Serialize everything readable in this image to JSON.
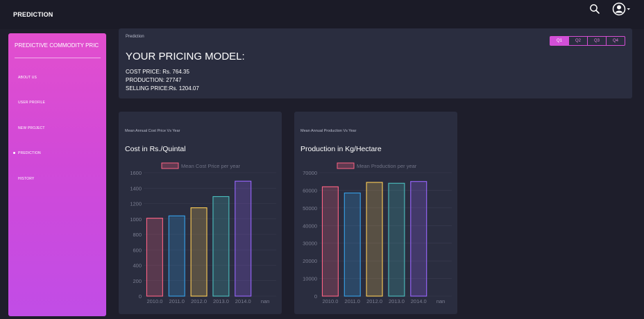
{
  "header": {
    "title": "PREDICTION"
  },
  "sidebar": {
    "title": "PREDICTIVE COMMODITY PRIC",
    "items": [
      {
        "label": "ABOUT US",
        "active": false
      },
      {
        "label": "USER PROFILE",
        "active": false
      },
      {
        "label": "NEW PROJECT",
        "active": false
      },
      {
        "label": "PREDICTION",
        "active": true
      },
      {
        "label": "HISTORY",
        "active": false
      }
    ]
  },
  "prediction": {
    "breadcrumb": "Prediction",
    "heading": "YOUR PRICING MODEL:",
    "cost_price": "COST PRICE: Rs. 764.35",
    "production": "PRODUCTION: 27747",
    "selling_price": "SELLING PRICE:Rs. 1204.07",
    "quarters": [
      "Q1",
      "Q2",
      "Q3",
      "Q4"
    ],
    "active_quarter": "Q1"
  },
  "icons": {
    "search": "search-icon",
    "user": "user-avatar-icon",
    "caret": "caret-down-icon"
  },
  "colors": {
    "accent": "#d24fd8",
    "background": "#1e1e2b",
    "panel": "#2a2d3f",
    "bar_colors": [
      "#ff6384",
      "#36a2eb",
      "#ffce56",
      "#4bc0c0",
      "#9966ff",
      "#ff9f40"
    ]
  },
  "chart_data": [
    {
      "type": "bar",
      "subtitle": "Mean Annual Cost Price Vs Year",
      "title": "Cost in Rs./Quintal",
      "legend": "Mean Cost Price per year",
      "categories": [
        "2010.0",
        "2011.0",
        "2012.0",
        "2013.0",
        "2014.0",
        "nan"
      ],
      "values": [
        1010,
        1040,
        1145,
        1290,
        1490,
        null
      ],
      "ylim": [
        0,
        1600
      ],
      "yticks": [
        0,
        200,
        400,
        600,
        800,
        1000,
        1200,
        1400,
        1600
      ]
    },
    {
      "type": "bar",
      "subtitle": "Mean Annual Production Vs Year",
      "title": "Production in Kg/Hectare",
      "legend": "Mean Production per year",
      "categories": [
        "2010.0",
        "2011.0",
        "2012.0",
        "2013.0",
        "2014.0",
        "nan"
      ],
      "values": [
        62000,
        58500,
        64500,
        64000,
        65000,
        null
      ],
      "ylim": [
        0,
        70000
      ],
      "yticks": [
        0,
        10000,
        20000,
        30000,
        40000,
        50000,
        60000,
        70000
      ]
    }
  ]
}
